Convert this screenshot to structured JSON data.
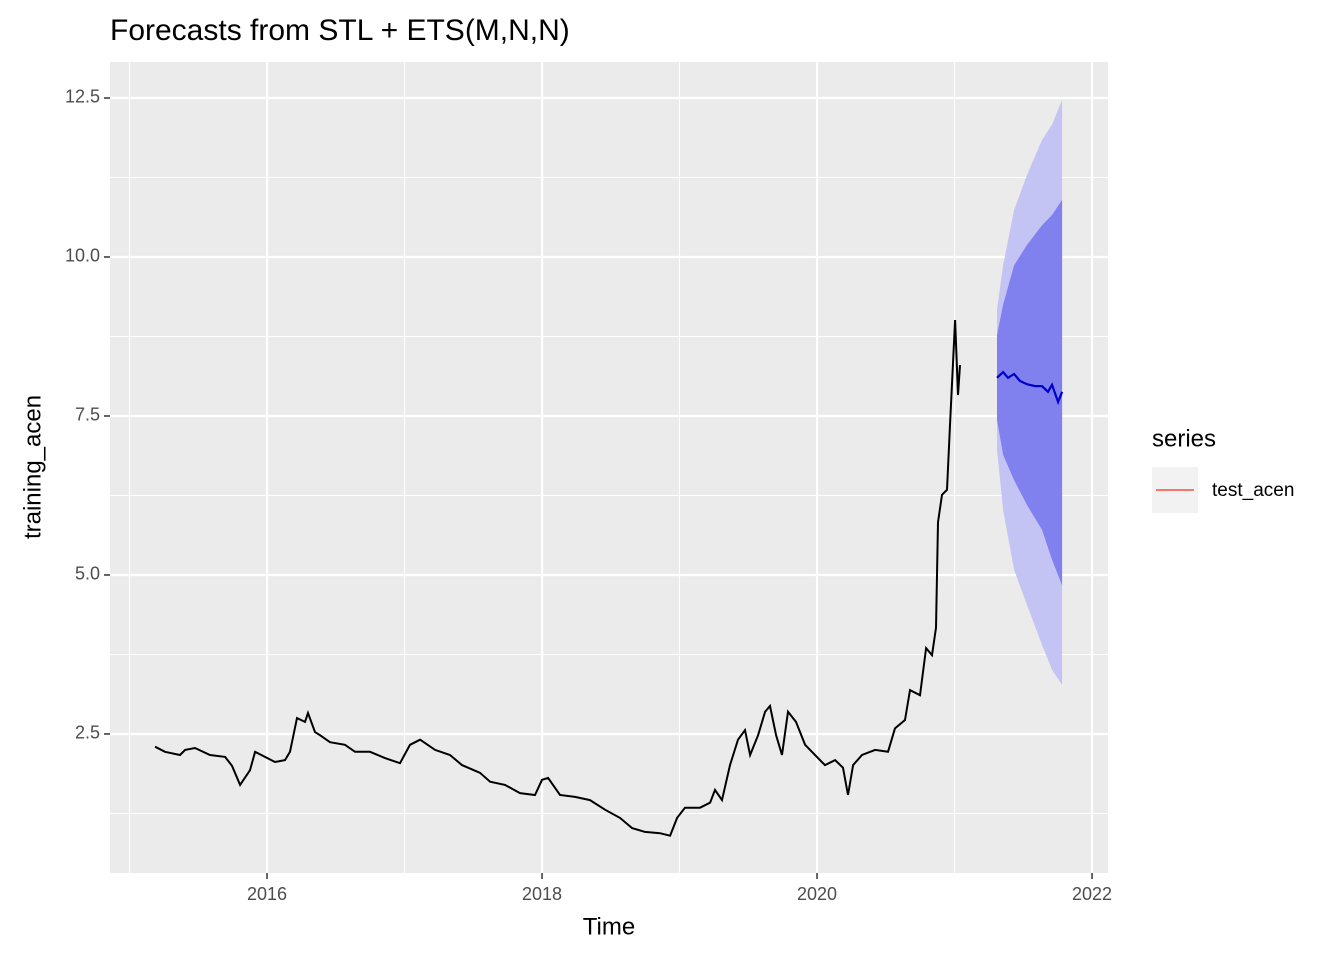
{
  "chart_data": {
    "type": "line",
    "title": "Forecasts from STL +  ETS(M,N,N)",
    "x_label": "Time",
    "y_label": "training_acen",
    "xlim": [
      2014.858,
      2022.116
    ],
    "ylim": [
      0.314,
      13.066
    ],
    "xticks": [
      2016,
      2018,
      2020,
      2022
    ],
    "yticks": [
      2.5,
      {
        "value": 5,
        "label": "5.0"
      },
      7.5,
      {
        "value": 10,
        "label": "10.0"
      },
      12.5
    ],
    "grid": true,
    "history": {
      "color": "#000000",
      "x": [
        2015.185,
        2015.258,
        2015.367,
        2015.404,
        2015.476,
        2015.585,
        2015.695,
        2015.745,
        2015.804,
        2015.876,
        2015.913,
        2015.985,
        2016.058,
        2016.131,
        2016.167,
        2016.218,
        2016.276,
        2016.298,
        2016.349,
        2016.385,
        2016.458,
        2016.567,
        2016.64,
        2016.749,
        2016.858,
        2016.967,
        2017.04,
        2017.113,
        2017.222,
        2017.331,
        2017.418,
        2017.549,
        2017.622,
        2017.731,
        2017.84,
        2017.949,
        2018.0,
        2018.044,
        2018.131,
        2018.24,
        2018.349,
        2018.458,
        2018.567,
        2018.655,
        2018.749,
        2018.858,
        2018.931,
        2018.982,
        2019.04,
        2019.149,
        2019.222,
        2019.258,
        2019.309,
        2019.367,
        2019.425,
        2019.476,
        2019.513,
        2019.571,
        2019.622,
        2019.658,
        2019.702,
        2019.745,
        2019.789,
        2019.847,
        2019.913,
        2020.007,
        2020.058,
        2020.131,
        2020.189,
        2020.225,
        2020.262,
        2020.327,
        2020.422,
        2020.516,
        2020.567,
        2020.64,
        2020.676,
        2020.749,
        2020.793,
        2020.836,
        2020.865,
        2020.88,
        2020.909,
        2020.945,
        2020.967,
        2021.004,
        2021.025,
        2021.04
      ],
      "values": [
        2.3,
        2.22,
        2.17,
        2.25,
        2.28,
        2.17,
        2.14,
        2.0,
        1.7,
        1.93,
        2.22,
        2.14,
        2.06,
        2.09,
        2.22,
        2.75,
        2.69,
        2.83,
        2.53,
        2.48,
        2.37,
        2.33,
        2.22,
        2.22,
        2.12,
        2.04,
        2.33,
        2.41,
        2.25,
        2.17,
        2.01,
        1.89,
        1.75,
        1.7,
        1.57,
        1.54,
        1.78,
        1.81,
        1.54,
        1.51,
        1.46,
        1.31,
        1.18,
        1.02,
        0.96,
        0.94,
        0.9,
        1.18,
        1.34,
        1.34,
        1.42,
        1.62,
        1.46,
        2.01,
        2.41,
        2.56,
        2.17,
        2.48,
        2.85,
        2.94,
        2.48,
        2.17,
        2.85,
        2.69,
        2.33,
        2.12,
        2.01,
        2.09,
        1.97,
        1.54,
        2.01,
        2.17,
        2.25,
        2.22,
        2.59,
        2.72,
        3.19,
        3.11,
        3.85,
        3.74,
        4.17,
        5.83,
        6.26,
        6.34,
        7.36,
        9.01,
        7.83,
        8.3
      ]
    },
    "intervals": [
      {
        "color": "#C4C4F4",
        "x": [
          2021.309,
          2021.353,
          2021.433,
          2021.527,
          2021.636,
          2021.709,
          2021.782
        ],
        "lo": [
          6.97,
          6.02,
          5.08,
          4.53,
          3.9,
          3.51,
          3.27
        ],
        "hi": [
          9.17,
          9.87,
          10.74,
          11.29,
          11.84,
          12.08,
          12.47
        ]
      },
      {
        "color": "#8080EE",
        "x": [
          2021.309,
          2021.353,
          2021.433,
          2021.527,
          2021.636,
          2021.709,
          2021.782
        ],
        "lo": [
          7.44,
          6.89,
          6.49,
          6.1,
          5.71,
          5.24,
          4.84
        ],
        "hi": [
          8.77,
          9.25,
          9.87,
          10.19,
          10.5,
          10.66,
          10.9
        ]
      }
    ],
    "forecast": {
      "color": "#0000CC",
      "x": [
        2021.309,
        2021.353,
        2021.389,
        2021.433,
        2021.476,
        2021.527,
        2021.585,
        2021.636,
        2021.68,
        2021.709,
        2021.753,
        2021.782
      ],
      "values": [
        8.1,
        8.19,
        8.1,
        8.16,
        8.05,
        8.0,
        7.97,
        7.97,
        7.88,
        7.99,
        7.72,
        7.88
      ]
    },
    "legend": {
      "title": "series",
      "position": "right",
      "entries": [
        {
          "name": "test_acen",
          "color": "#F8766D"
        }
      ]
    }
  }
}
